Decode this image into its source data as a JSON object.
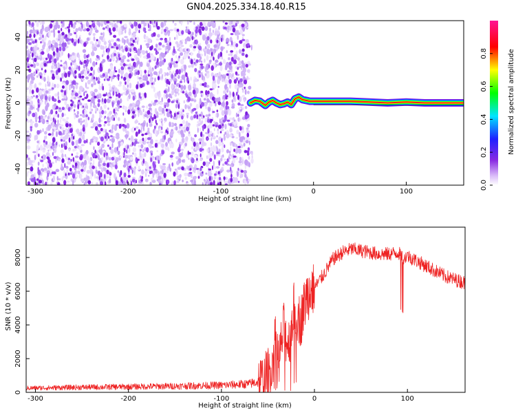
{
  "title": "GN04.2025.334.18.40.R15",
  "chart_data": [
    {
      "type": "heatmap",
      "title": "GN04.2025.334.18.40.R15",
      "xlabel": "Height of straight line (km)",
      "ylabel": "Frequency (Hz)",
      "xlim": [
        -310,
        162
      ],
      "ylim": [
        -50,
        50
      ],
      "x_ticks": [
        "-300",
        "-200",
        "-100",
        "0",
        "100"
      ],
      "y_ticks": [
        "-40",
        "-20",
        "0",
        "20",
        "40"
      ],
      "noise_region_x": [
        -310,
        -68
      ],
      "signal_track": {
        "x": [
          -68,
          -63,
          -58,
          -52,
          -48,
          -44,
          -40,
          -36,
          -32,
          -28,
          -24,
          -20,
          -16,
          -12,
          -8,
          -4,
          0,
          20,
          40,
          60,
          80,
          100,
          120,
          140,
          162
        ],
        "y": [
          0,
          1.5,
          1.0,
          -1.5,
          0.5,
          1.5,
          0,
          -1.0,
          -0.5,
          0.5,
          -1.0,
          2.5,
          3.5,
          2.0,
          1.5,
          1.0,
          1.0,
          1.0,
          1.0,
          0.5,
          0,
          0.5,
          0,
          0,
          0
        ]
      },
      "colorbar": {
        "label": "Normalized spectral amplitude",
        "ticks": [
          "0.0",
          "0.2",
          "0.4",
          "0.6",
          "0.8"
        ],
        "range": [
          0,
          1
        ],
        "colors": [
          "#ffffff",
          "#8a2be2",
          "#0000ff",
          "#00e5ff",
          "#00ff00",
          "#ffff00",
          "#ff0000",
          "#ff1493"
        ]
      }
    },
    {
      "type": "line",
      "xlabel": "Height of straight line (km)",
      "ylabel": "SNR (10 * v/v)",
      "xlim": [
        -310,
        162
      ],
      "ylim": [
        0,
        9800
      ],
      "x_ticks": [
        "-300",
        "-200",
        "-100",
        "0",
        "100"
      ],
      "y_ticks": [
        "0",
        "2000",
        "4000",
        "6000",
        "8000"
      ],
      "color": "#ee2222",
      "envelope": {
        "x": [
          -310,
          -250,
          -200,
          -150,
          -100,
          -70,
          -55,
          -47,
          -42,
          -38,
          -33,
          -28,
          -22,
          -15,
          -8,
          0,
          10,
          20,
          30,
          40,
          50,
          60,
          70,
          80,
          90,
          95,
          100,
          110,
          120,
          130,
          140,
          150,
          162
        ],
        "y": [
          250,
          300,
          330,
          370,
          420,
          500,
          700,
          1300,
          3000,
          2000,
          3800,
          2800,
          5000,
          4200,
          5800,
          6200,
          7000,
          7900,
          8300,
          8500,
          8400,
          8300,
          8200,
          8200,
          8300,
          8000,
          8100,
          7800,
          7500,
          7200,
          6900,
          6700,
          6500
        ]
      }
    }
  ]
}
